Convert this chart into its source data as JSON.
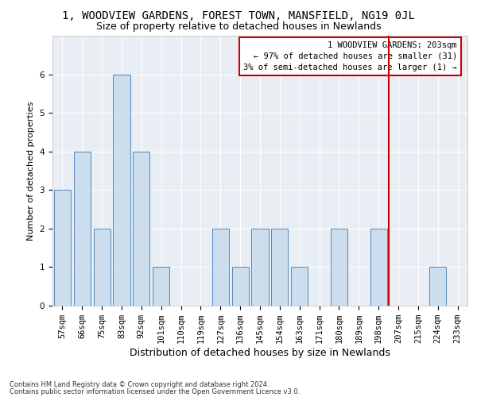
{
  "title": "1, WOODVIEW GARDENS, FOREST TOWN, MANSFIELD, NG19 0JL",
  "subtitle": "Size of property relative to detached houses in Newlands",
  "xlabel": "Distribution of detached houses by size in Newlands",
  "ylabel": "Number of detached properties",
  "categories": [
    "57sqm",
    "66sqm",
    "75sqm",
    "83sqm",
    "92sqm",
    "101sqm",
    "110sqm",
    "119sqm",
    "127sqm",
    "136sqm",
    "145sqm",
    "154sqm",
    "163sqm",
    "171sqm",
    "180sqm",
    "189sqm",
    "198sqm",
    "207sqm",
    "215sqm",
    "224sqm",
    "233sqm"
  ],
  "values": [
    3,
    4,
    2,
    6,
    4,
    1,
    0,
    0,
    2,
    1,
    2,
    2,
    1,
    0,
    2,
    0,
    2,
    0,
    0,
    1,
    0
  ],
  "bar_color": "#ccdded",
  "bar_edge_color": "#5588bb",
  "ylim": [
    0,
    7
  ],
  "yticks": [
    0,
    1,
    2,
    3,
    4,
    5,
    6
  ],
  "red_line_x": 16.5,
  "red_line_color": "#cc0000",
  "annotation_text": "1 WOODVIEW GARDENS: 203sqm\n← 97% of detached houses are smaller (31)\n3% of semi-detached houses are larger (1) →",
  "annotation_box_color": "#cc0000",
  "footer_line1": "Contains HM Land Registry data © Crown copyright and database right 2024.",
  "footer_line2": "Contains public sector information licensed under the Open Government Licence v3.0.",
  "plot_bg_color": "#e8eef4",
  "title_fontsize": 10,
  "subtitle_fontsize": 9,
  "ylabel_fontsize": 8,
  "xlabel_fontsize": 9,
  "tick_fontsize": 7.5,
  "annot_fontsize": 7.5,
  "footer_fontsize": 6
}
